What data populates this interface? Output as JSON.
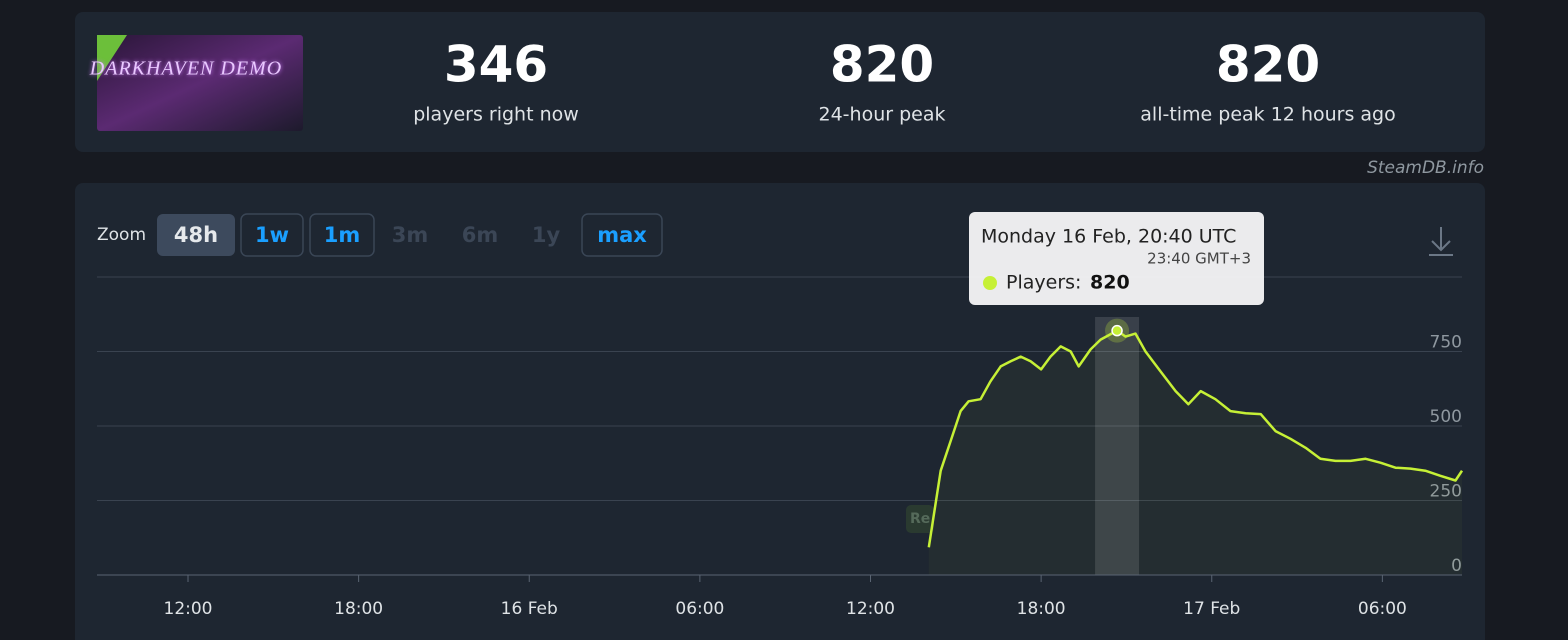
{
  "header": {
    "logo": "DARKHAVEN DEMO",
    "stats": [
      {
        "value": 346,
        "label": "players right now"
      },
      {
        "value": 820,
        "label": "24-hour peak"
      },
      {
        "value": 820,
        "label": "all-time peak 12 hours ago"
      }
    ]
  },
  "credit": "SteamDB.info",
  "zoom": {
    "label": "Zoom",
    "buttons": [
      {
        "text": "48h",
        "state": "active"
      },
      {
        "text": "1w",
        "state": "enabled"
      },
      {
        "text": "1m",
        "state": "enabled"
      },
      {
        "text": "3m",
        "state": "disabled"
      },
      {
        "text": "6m",
        "state": "disabled"
      },
      {
        "text": "1y",
        "state": "disabled"
      },
      {
        "text": "max",
        "state": "enabled"
      }
    ]
  },
  "chart_data": {
    "type": "line",
    "color": "#c6f036",
    "grid": true,
    "x": [
      38.05,
      38.47,
      38.82,
      39.17,
      39.45,
      39.87,
      40.22,
      40.58,
      40.93,
      41.28,
      41.63,
      42.0,
      42.33,
      42.69,
      43.04,
      43.32,
      43.74,
      44.09,
      44.67,
      44.97,
      45.32,
      45.67,
      46.2,
      46.73,
      47.18,
      47.61,
      48.13,
      48.66,
      49.19,
      49.72,
      50.24,
      50.77,
      51.3,
      51.82,
      52.35,
      52.88,
      53.41,
      53.93,
      54.46,
      54.99,
      55.51,
      56.04,
      56.57,
      56.8
    ],
    "values": [
      93,
      350,
      450,
      550,
      583,
      590,
      650,
      700,
      717,
      733,
      717,
      690,
      733,
      767,
      750,
      700,
      757,
      790,
      820,
      800,
      810,
      750,
      683,
      617,
      573,
      617,
      590,
      550,
      543,
      540,
      483,
      457,
      427,
      390,
      383,
      383,
      390,
      377,
      360,
      357,
      350,
      333,
      317,
      350
    ],
    "xlim": [
      8.8,
      56.8
    ],
    "xticks": [
      {
        "value": 12,
        "label": "12:00"
      },
      {
        "value": 18,
        "label": "18:00"
      },
      {
        "value": 24,
        "label": "16 Feb"
      },
      {
        "value": 30,
        "label": "06:00"
      },
      {
        "value": 36,
        "label": "12:00"
      },
      {
        "value": 42,
        "label": "18:00"
      },
      {
        "value": 48,
        "label": "17 Feb"
      },
      {
        "value": 54,
        "label": "06:00"
      }
    ],
    "ylim": [
      0,
      1000
    ],
    "yticks": [
      0,
      250,
      500,
      750
    ],
    "annotations": [
      "Re"
    ],
    "tooltip": {
      "title": "Monday 16 Feb, 20:40 UTC",
      "subtitle": "23:40 GMT+3",
      "label": "Players:",
      "value": 820
    }
  }
}
